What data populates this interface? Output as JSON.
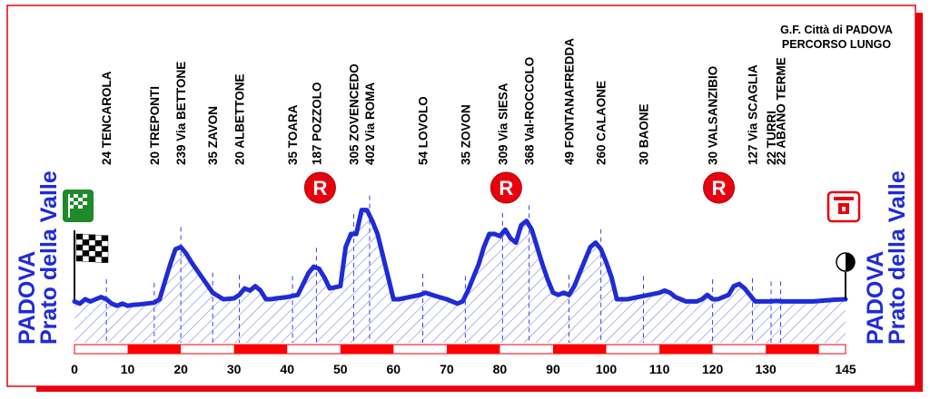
{
  "header": {
    "line1": "G.F. Città di PADOVA",
    "line2": "PERCORSO LUNGO"
  },
  "left_label": {
    "line1": "PADOVA",
    "line2": "Prato della Valle"
  },
  "right_label": {
    "line1": "PADOVA",
    "line2": "Prato della Valle"
  },
  "chart_data": {
    "type": "area",
    "title": "G.F. Città di PADOVA — PERCORSO LUNGO",
    "xlabel": "",
    "ylabel": "",
    "xlim": [
      0,
      145
    ],
    "x_ticks": [
      "0",
      "10",
      "20",
      "30",
      "40",
      "50",
      "60",
      "70",
      "80",
      "90",
      "100",
      "110",
      "120",
      "130",
      "145"
    ],
    "grid": false,
    "series": [
      {
        "values_x": [
          0,
          1,
          2,
          3,
          4,
          5,
          6,
          7,
          8,
          9,
          10,
          11,
          12,
          15,
          16,
          17,
          18,
          19,
          20,
          21,
          22,
          24,
          26,
          28,
          30,
          31,
          32,
          33,
          34,
          35,
          36,
          37,
          38,
          40,
          42,
          43,
          44,
          45,
          46,
          47,
          48,
          50,
          51,
          52,
          53,
          54,
          55,
          56,
          57,
          58,
          59,
          60,
          61,
          63,
          65,
          66,
          68,
          70,
          72,
          73,
          74,
          75,
          76,
          77,
          78,
          79,
          80,
          81,
          82,
          83,
          84,
          85,
          86,
          87,
          88,
          89,
          90,
          91,
          92,
          93,
          94,
          95,
          96,
          97,
          98,
          99,
          100,
          101,
          102,
          104,
          106,
          108,
          110,
          111,
          112,
          113,
          114,
          115,
          116,
          117,
          118,
          119,
          120,
          121,
          122,
          123,
          124,
          125,
          126,
          127,
          128,
          129,
          130,
          131,
          132,
          133,
          134,
          135,
          136,
          137,
          138,
          139,
          140,
          141,
          142,
          143,
          145
        ],
        "values_y": [
          95,
          90,
          100,
          95,
          100,
          105,
          100,
          90,
          85,
          90,
          85,
          87,
          88,
          92,
          100,
          140,
          180,
          215,
          220,
          205,
          185,
          150,
          115,
          100,
          102,
          110,
          125,
          120,
          130,
          120,
          100,
          100,
          102,
          105,
          110,
          135,
          160,
          175,
          170,
          150,
          125,
          130,
          220,
          250,
          250,
          305,
          305,
          280,
          250,
          200,
          150,
          100,
          100,
          105,
          110,
          115,
          107,
          100,
          90,
          95,
          120,
          150,
          180,
          220,
          250,
          250,
          245,
          260,
          240,
          230,
          270,
          280,
          260,
          220,
          180,
          145,
          115,
          110,
          115,
          110,
          130,
          160,
          190,
          220,
          230,
          215,
          185,
          150,
          100,
          100,
          105,
          110,
          115,
          120,
          115,
          105,
          100,
          95,
          95,
          95,
          100,
          110,
          100,
          100,
          105,
          110,
          130,
          135,
          125,
          110,
          95,
          95,
          95,
          95,
          96,
          95,
          95,
          95,
          95,
          95,
          95,
          95,
          96,
          97,
          98,
          99,
          100
        ]
      }
    ],
    "ylim": [
      0,
      340
    ],
    "annotations": [
      {
        "x": 6,
        "text": "24  TENCAROLA"
      },
      {
        "x": 15,
        "text": "20  TREPONTI"
      },
      {
        "x": 20,
        "text": "239 Via BETTONE"
      },
      {
        "x": 26,
        "text": "35  ZAVON"
      },
      {
        "x": 31,
        "text": "20  ALBETTONE"
      },
      {
        "x": 41,
        "text": "35  TOARA"
      },
      {
        "x": 45.5,
        "text": "187 POZZOLO"
      },
      {
        "x": 52.5,
        "text": "305 ZOVENCEDO"
      },
      {
        "x": 55.5,
        "text": "402 Via ROMA"
      },
      {
        "x": 65.5,
        "text": "54  LOVOLO"
      },
      {
        "x": 73.5,
        "text": "35  ZOVON"
      },
      {
        "x": 80.5,
        "text": "309 Via SIESA"
      },
      {
        "x": 85.5,
        "text": "368 Val-ROCCOLO"
      },
      {
        "x": 93,
        "text": "49  FONTANAFREDDA"
      },
      {
        "x": 99,
        "text": "260 CALAONE"
      },
      {
        "x": 107,
        "text": "30  BAONE"
      },
      {
        "x": 120,
        "text": "30  VALSANZIBIO"
      },
      {
        "x": 127.5,
        "text": "127 Via SCAGLIA"
      },
      {
        "x": 131,
        "text": "22  TURRI"
      },
      {
        "x": 132.8,
        "text": "22  ABANO TERME"
      }
    ],
    "refreshment_points_x": [
      45.5,
      80.5,
      120.5
    ]
  },
  "icons": {
    "start": "start-flag-icon",
    "finish": "finish-flag-icon",
    "refresh": "refreshment-r-icon",
    "start_sign": "start-sign-icon",
    "finish_sign": "finish-sign-icon"
  },
  "colors": {
    "profile": "#1f2bd6",
    "hatch": "#6a6ee8",
    "frame_red": "#e8000d",
    "scale_red": "#ff0000"
  },
  "refreshment_label": "R"
}
